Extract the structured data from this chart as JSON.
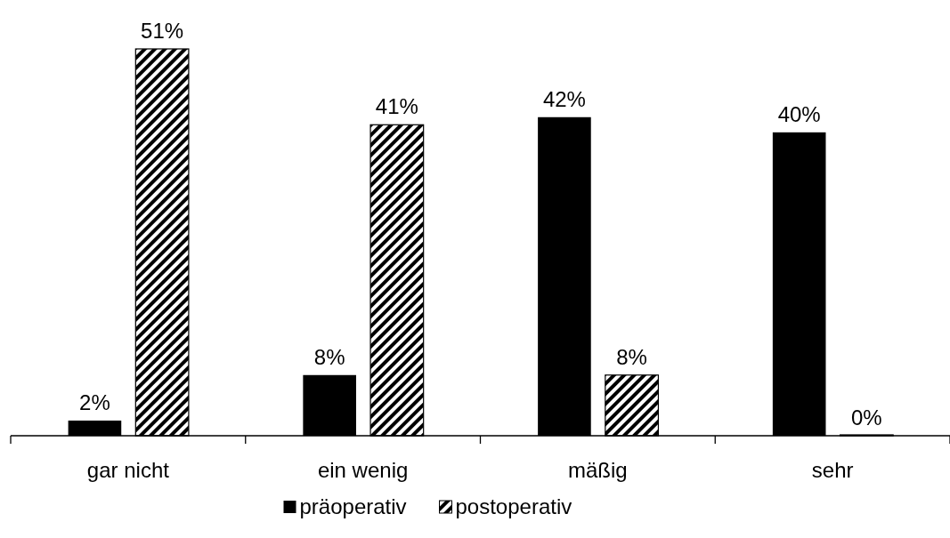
{
  "chart_data": {
    "type": "bar",
    "categories": [
      "gar nicht",
      "ein wenig",
      "mäßig",
      "sehr"
    ],
    "series": [
      {
        "name": "präoperativ",
        "color": "#000000",
        "values": [
          2,
          8,
          42,
          40
        ],
        "value_labels": [
          "2%",
          "8%",
          "42%",
          "40%"
        ]
      },
      {
        "name": "postoperativ",
        "color": "#000000",
        "values": [
          51,
          41,
          8,
          0
        ],
        "value_labels": [
          "51%",
          "41%",
          "8%",
          "0%"
        ]
      }
    ],
    "legend": "bottom"
  }
}
